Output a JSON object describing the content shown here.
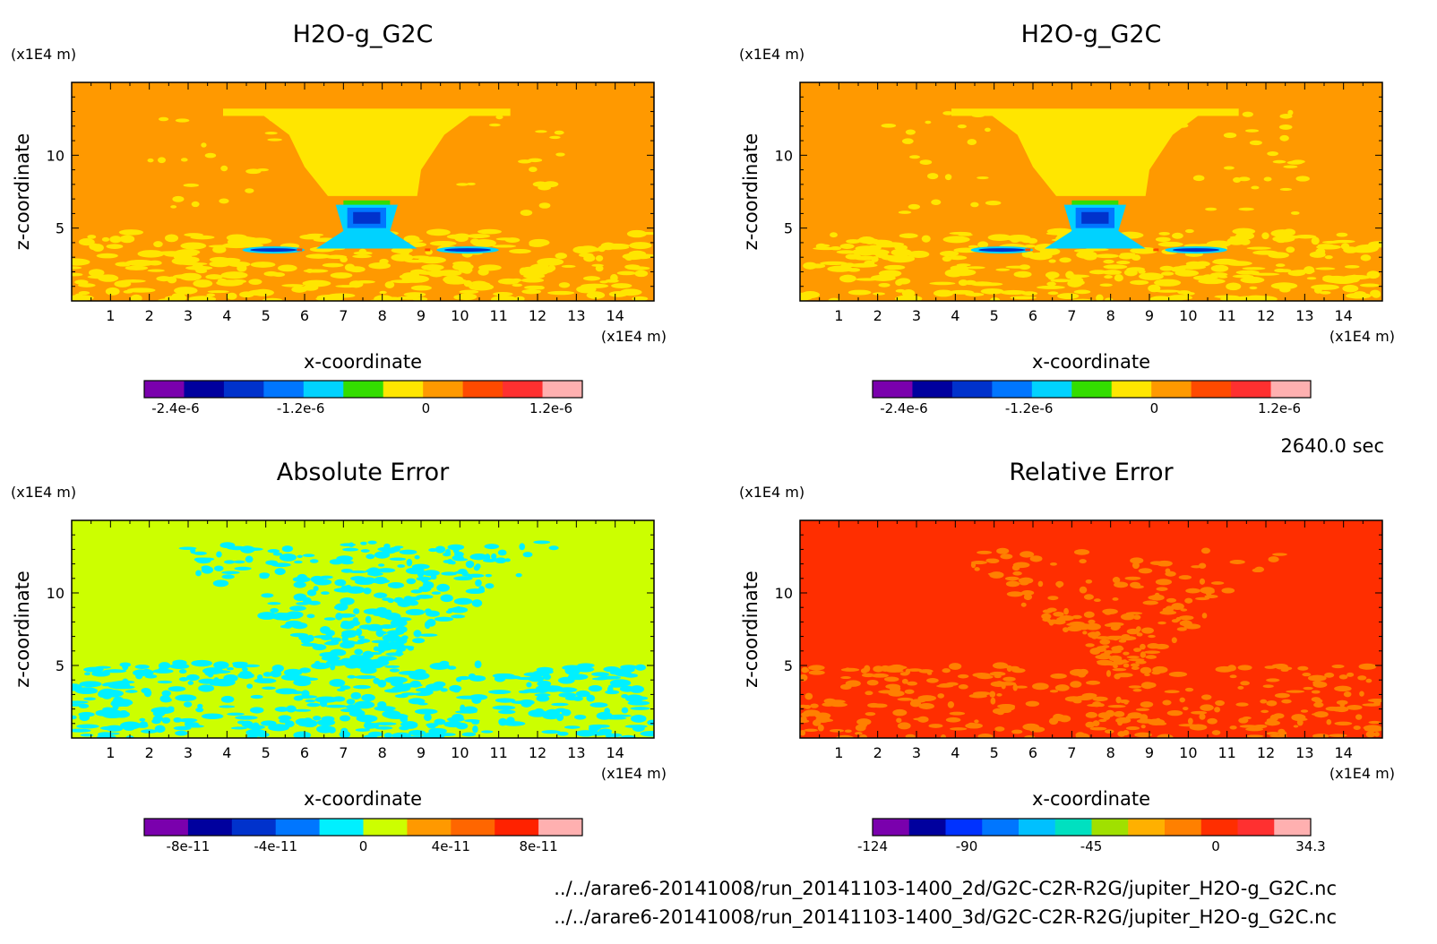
{
  "time_label": "2640.0 sec",
  "files": [
    "../../arare6-20141008/run_20141103-1400_2d/G2C-C2R-R2G/jupiter_H2O-g_G2C.nc",
    "../../arare6-20141008/run_20141103-1400_3d/G2C-C2R-R2G/jupiter_H2O-g_G2C.nc"
  ],
  "chart_data": [
    {
      "type": "heatmap",
      "title": "H2O-g_G2C",
      "xlabel": "x-coordinate",
      "ylabel": "z-coordinate",
      "x_unit": "(x1E4 m)",
      "y_unit": "(x1E4 m)",
      "xlim": [
        0,
        15
      ],
      "ylim": [
        0,
        15
      ],
      "x_ticks": [
        "1",
        "2",
        "3",
        "4",
        "5",
        "6",
        "7",
        "8",
        "9",
        "10",
        "11",
        "12",
        "13",
        "14"
      ],
      "y_ticks": [
        "5",
        "10"
      ],
      "background_color": "#ff9900",
      "colorbar": {
        "colors": [
          "#7a00ad",
          "#00009e",
          "#0032cc",
          "#0076ff",
          "#00d2ff",
          "#33dd00",
          "#ffe600",
          "#ff9900",
          "#ff4a00",
          "#ff3030",
          "#ffb0b0"
        ],
        "tick_labels": [
          "-2.4e-6",
          "-1.2e-6",
          "0",
          "1.2e-6"
        ],
        "tick_values": [
          -2.4e-06,
          -1.2e-06,
          0,
          1.2e-06
        ],
        "range": [
          -2.7e-06,
          1.5e-06
        ]
      }
    },
    {
      "type": "heatmap",
      "title": "H2O-g_G2C",
      "xlabel": "x-coordinate",
      "ylabel": "z-coordinate",
      "x_unit": "(x1E4 m)",
      "y_unit": "(x1E4 m)",
      "xlim": [
        0,
        15
      ],
      "ylim": [
        0,
        15
      ],
      "x_ticks": [
        "1",
        "2",
        "3",
        "4",
        "5",
        "6",
        "7",
        "8",
        "9",
        "10",
        "11",
        "12",
        "13",
        "14"
      ],
      "y_ticks": [
        "5",
        "10"
      ],
      "background_color": "#ff9900",
      "colorbar": {
        "colors": [
          "#7a00ad",
          "#00009e",
          "#0032cc",
          "#0076ff",
          "#00d2ff",
          "#33dd00",
          "#ffe600",
          "#ff9900",
          "#ff4a00",
          "#ff3030",
          "#ffb0b0"
        ],
        "tick_labels": [
          "-2.4e-6",
          "-1.2e-6",
          "0",
          "1.2e-6"
        ],
        "tick_values": [
          -2.4e-06,
          -1.2e-06,
          0,
          1.2e-06
        ],
        "range": [
          -2.7e-06,
          1.5e-06
        ]
      }
    },
    {
      "type": "heatmap",
      "title": "Absolute Error",
      "xlabel": "x-coordinate",
      "ylabel": "z-coordinate",
      "x_unit": "(x1E4 m)",
      "y_unit": "(x1E4 m)",
      "xlim": [
        0,
        15
      ],
      "ylim": [
        0,
        15
      ],
      "x_ticks": [
        "1",
        "2",
        "3",
        "4",
        "5",
        "6",
        "7",
        "8",
        "9",
        "10",
        "11",
        "12",
        "13",
        "14"
      ],
      "y_ticks": [
        "5",
        "10"
      ],
      "background_color": "#ccff00",
      "colorbar": {
        "colors": [
          "#7a00ad",
          "#00009e",
          "#0032cc",
          "#0076ff",
          "#00f0ff",
          "#ccff00",
          "#ff9900",
          "#ff6600",
          "#ff2200",
          "#ffb0b0"
        ],
        "tick_labels": [
          "-8e-11",
          "-4e-11",
          "0",
          "4e-11",
          "8e-11"
        ],
        "tick_values": [
          -8e-11,
          -4e-11,
          0,
          4e-11,
          8e-11
        ],
        "range": [
          -1e-10,
          1e-10
        ]
      }
    },
    {
      "type": "heatmap",
      "title": "Relative Error",
      "xlabel": "x-coordinate",
      "ylabel": "z-coordinate",
      "x_unit": "(x1E4 m)",
      "y_unit": "(x1E4 m)",
      "xlim": [
        0,
        15
      ],
      "ylim": [
        0,
        15
      ],
      "x_ticks": [
        "1",
        "2",
        "3",
        "4",
        "5",
        "6",
        "7",
        "8",
        "9",
        "10",
        "11",
        "12",
        "13",
        "14"
      ],
      "y_ticks": [
        "5",
        "10"
      ],
      "background_color": "#ff2e00",
      "colorbar": {
        "colors": [
          "#7a00ad",
          "#00009e",
          "#0032ff",
          "#0076ff",
          "#00c0ff",
          "#00e0c0",
          "#a0e000",
          "#ffb000",
          "#ff8000",
          "#ff2e00",
          "#ff3030",
          "#ffb0b0"
        ],
        "tick_labels": [
          "-124",
          "-90",
          "-45",
          "0",
          "34.3"
        ],
        "tick_values": [
          -124,
          -90,
          -45,
          0,
          34.3
        ],
        "range": [
          -124,
          34.3
        ]
      }
    }
  ]
}
